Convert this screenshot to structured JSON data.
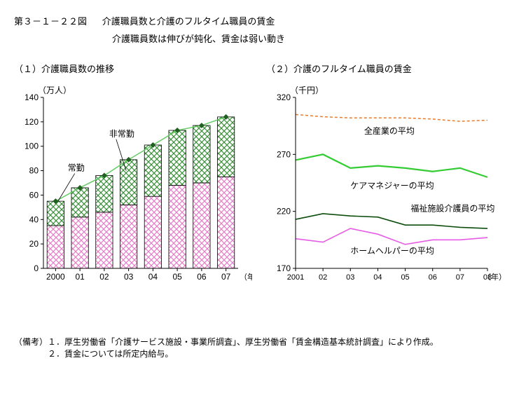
{
  "header": {
    "figure_number": "第３－１－２２図",
    "title": "介護職員数と介護のフルタイム職員の賃金",
    "subtitle": "介護職員数は伸びが鈍化、賃金は弱い動き"
  },
  "left_chart": {
    "title": "（１）介護職員数の推移",
    "type": "stacked-bar-with-line",
    "y_axis": {
      "label": "（万人）",
      "min": 0,
      "max": 140,
      "step": 20
    },
    "x_axis": {
      "label": "（年）",
      "categories": [
        "2000",
        "01",
        "02",
        "03",
        "04",
        "05",
        "06",
        "07"
      ]
    },
    "series": [
      {
        "name": "常勤",
        "label": "常勤",
        "values": [
          35,
          42,
          46,
          52,
          59,
          68,
          70,
          75
        ],
        "pattern": "crosshatch",
        "color": "#e67ec6",
        "bg": "#ffffff"
      },
      {
        "name": "非常勤",
        "label": "非常勤",
        "values": [
          20,
          24,
          30,
          37,
          42,
          45,
          47,
          49
        ],
        "pattern": "crosshatch",
        "color": "#3a8f3a",
        "bg": "#ffffff"
      }
    ],
    "totals_line": {
      "values": [
        55,
        66,
        76,
        89,
        101,
        113,
        117,
        124
      ],
      "color": "#66cc66",
      "marker_color": "#1f5f1f",
      "marker": "diamond"
    },
    "bar_width": 0.7,
    "series_label_positions": {
      "常勤": {
        "x_idx": 0.5,
        "y": 80,
        "leader_to": {
          "x_idx": 0.1,
          "y": 55
        }
      },
      "非常勤": {
        "x_idx": 2.2,
        "y": 108,
        "leader_to": {
          "x_idx": 2.9,
          "y": 80
        }
      }
    },
    "axis_color": "#000000",
    "label_fontsize": 12
  },
  "right_chart": {
    "title": "（２）介護のフルタイム職員の賃金",
    "type": "line",
    "y_axis": {
      "label": "（千円）",
      "min": 170,
      "max": 320,
      "step": 50
    },
    "x_axis": {
      "label": "（年）",
      "categories": [
        "2001",
        "02",
        "03",
        "04",
        "05",
        "06",
        "07",
        "08"
      ]
    },
    "lines": [
      {
        "name": "all-industries",
        "label": "全産業の平均",
        "values": [
          305,
          303,
          302,
          302,
          302,
          301,
          299,
          300
        ],
        "color": "#e87b2a",
        "dash": "4,3",
        "width": 1.5
      },
      {
        "name": "care-manager",
        "label": "ケアマネジャーの平均",
        "values": [
          265,
          270,
          258,
          260,
          258,
          255,
          258,
          250
        ],
        "color": "#33cc33",
        "dash": "",
        "width": 2.2
      },
      {
        "name": "welfare-caregiver",
        "label": "福祉施設介護員の平均",
        "values": [
          213,
          218,
          216,
          215,
          208,
          208,
          206,
          205
        ],
        "color": "#0d4d0d",
        "dash": "",
        "width": 1.6
      },
      {
        "name": "home-helper",
        "label": "ホームヘルパーの平均",
        "values": [
          196,
          193,
          205,
          200,
          191,
          195,
          195,
          197
        ],
        "color": "#e65ce6",
        "dash": "",
        "width": 1.6
      }
    ],
    "label_positions": {
      "全産業の平均": {
        "x_idx": 2.5,
        "y": 288
      },
      "ケアマネジャーの平均": {
        "x_idx": 2.0,
        "y": 240
      },
      "福祉施設介護員の平均": {
        "x_idx": 4.2,
        "y": 220
      },
      "ホームヘルパーの平均": {
        "x_idx": 2.0,
        "y": 183
      }
    },
    "axis_color": "#000000",
    "label_fontsize": 12
  },
  "footnotes": {
    "prefix": "（備考）",
    "items": [
      "１．厚生労働省「介護サービス施設・事業所調査」、厚生労働省「賃金構造基本統計調査」により作成。",
      "２．賃金については所定内給与。"
    ]
  }
}
